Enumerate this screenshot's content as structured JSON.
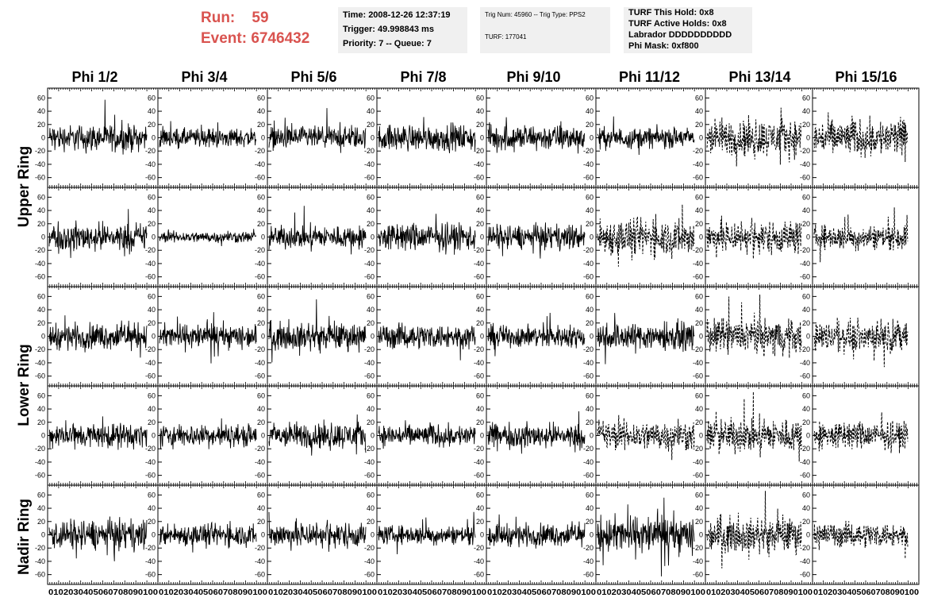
{
  "header": {
    "run_label": "Run:    59",
    "event_label": "Event: 6746432"
  },
  "info_box_1": {
    "time": "Time: 2008-12-26 12:37:19",
    "trigger": "Trigger: 49.998843 ms",
    "priority": "Priority: 7 -- Queue: 7"
  },
  "info_box_2": {
    "trig": "Trig Num: 45960 -- Trig Type: PPS2",
    "turf": "TURF: 177041"
  },
  "info_box_3": {
    "this_hold": "TURF This Hold: 0x8",
    "active_holds": "TURF Active Holds: 0x8",
    "labrador": "Labrador DDDDDDDDDD",
    "phi_mask": "Phi Mask: 0xf800"
  },
  "colors": {
    "header_red": "#d9534f",
    "info_bg": "#f0f0f0",
    "trace": "#000000"
  },
  "chart_data": {
    "type": "line",
    "columns": [
      "Phi 1/2",
      "Phi 3/4",
      "Phi 5/6",
      "Phi 7/8",
      "Phi 9/10",
      "Phi 11/12",
      "Phi 13/14",
      "Phi 15/16"
    ],
    "rows": [
      "Upper Ring",
      "Upper Ring",
      "Lower Ring",
      "Lower Ring",
      "Nadir Ring"
    ],
    "row_labels": [
      "Upper Ring",
      "Lower Ring",
      "Nadir Ring"
    ],
    "xlim": [
      0,
      100
    ],
    "ylim": [
      -70,
      70
    ],
    "x_ticks": [
      0,
      10,
      20,
      30,
      40,
      50,
      60,
      70,
      80,
      90,
      100
    ],
    "y_ticks": [
      60,
      40,
      20,
      0,
      -20,
      -40,
      -60
    ],
    "samples": 260,
    "dashed_panels": [
      [
        0,
        6
      ],
      [
        0,
        7
      ],
      [
        1,
        5
      ],
      [
        1,
        6
      ],
      [
        1,
        7
      ],
      [
        2,
        6
      ],
      [
        2,
        7
      ],
      [
        3,
        5
      ],
      [
        3,
        6
      ],
      [
        3,
        7
      ],
      [
        4,
        6
      ],
      [
        4,
        7
      ]
    ],
    "amplitudes": [
      [
        14,
        10,
        12,
        14,
        14,
        11,
        20,
        20
      ],
      [
        15,
        6,
        12,
        15,
        13,
        20,
        18,
        13
      ],
      [
        14,
        13,
        14,
        13,
        12,
        15,
        18,
        16
      ],
      [
        13,
        12,
        14,
        12,
        13,
        16,
        18,
        15
      ],
      [
        16,
        12,
        14,
        10,
        12,
        20,
        18,
        13
      ]
    ]
  }
}
